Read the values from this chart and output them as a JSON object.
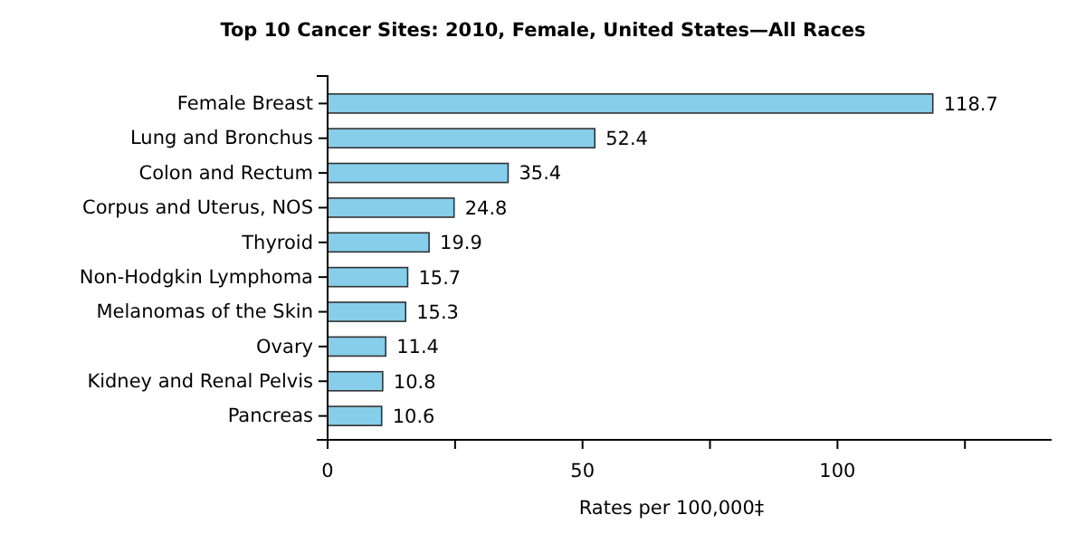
{
  "chart_data": {
    "type": "bar",
    "orientation": "horizontal",
    "title": "Top 10 Cancer Sites: 2010, Female, United States—All Races",
    "xlabel": "Rates per 100,000‡",
    "categories": [
      "Female Breast",
      "Lung and Bronchus",
      "Colon and Rectum",
      "Corpus and Uterus, NOS",
      "Thyroid",
      "Non-Hodgkin Lymphoma",
      "Melanomas of the Skin",
      "Ovary",
      "Kidney and Renal Pelvis",
      "Pancreas"
    ],
    "values": [
      118.7,
      52.4,
      35.4,
      24.8,
      19.9,
      15.7,
      15.3,
      11.4,
      10.8,
      10.6
    ],
    "color": "#87ceeb",
    "data_labels": true,
    "grid": false,
    "xlim": [
      0,
      142
    ],
    "xticks": [
      0,
      {
        "value": 25,
        "label": null
      },
      50,
      {
        "value": 75,
        "label": null
      },
      100,
      {
        "value": 125,
        "label": null
      }
    ]
  }
}
